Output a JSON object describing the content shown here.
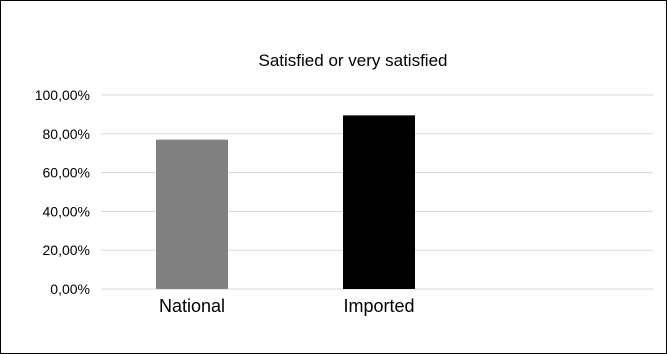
{
  "chart_data": {
    "type": "bar",
    "title": "Satisfied or very satisfied",
    "xlabel": "",
    "ylabel": "",
    "categories": [
      "National",
      "Imported"
    ],
    "values": [
      77,
      89.5
    ],
    "colors": [
      "#808080",
      "#000000"
    ],
    "ylim": [
      0,
      100
    ],
    "yticks": [
      0,
      20,
      40,
      60,
      80,
      100
    ],
    "ytick_labels": [
      "0,00%",
      "20,00%",
      "40,00%",
      "60,00%",
      "80,00%",
      "100,00%"
    ],
    "grid": true,
    "legend": "none"
  }
}
